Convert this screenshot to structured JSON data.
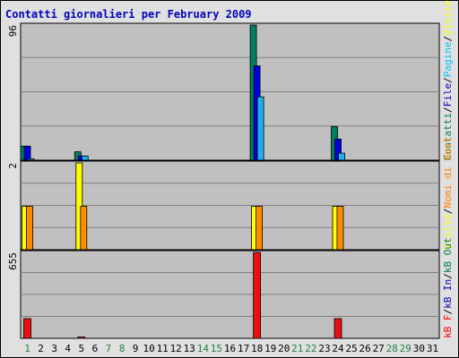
{
  "chart_data": {
    "type": "bar",
    "title": "Contatti giornalieri per February 2009",
    "x": [
      "1",
      "2",
      "3",
      "4",
      "5",
      "6",
      "7",
      "8",
      "9",
      "10",
      "11",
      "12",
      "13",
      "14",
      "15",
      "16",
      "17",
      "18",
      "19",
      "20",
      "21",
      "22",
      "23",
      "24",
      "25",
      "26",
      "27",
      "28",
      "29",
      "30",
      "31"
    ],
    "weekend_days": [
      "1",
      "7",
      "8",
      "14",
      "15",
      "21",
      "22",
      "28",
      "29"
    ],
    "panels": [
      {
        "id": "top",
        "ymax_label": "96",
        "ymax": 96,
        "legend": [
          {
            "label": "Contatti",
            "color": "#008040"
          },
          {
            "label": "/",
            "color": "#000000"
          },
          {
            "label": "File",
            "color": "#0000c0"
          },
          {
            "label": "/",
            "color": "#000000"
          },
          {
            "label": "Pagine",
            "color": "#00c0ff"
          },
          {
            "label": "/",
            "color": "#000000"
          },
          {
            "label": "Visite",
            "color": "#ffff00"
          }
        ],
        "series": [
          {
            "name": "Contatti",
            "color": "#008060",
            "values": [
              10,
              0,
              0,
              0,
              6,
              0,
              0,
              0,
              0,
              0,
              0,
              0,
              0,
              0,
              0,
              0,
              0,
              96,
              0,
              0,
              0,
              0,
              0,
              24,
              0,
              0,
              0,
              0,
              0,
              0,
              0
            ]
          },
          {
            "name": "File",
            "color": "#0000e0",
            "values": [
              10,
              0,
              0,
              0,
              3,
              0,
              0,
              0,
              0,
              0,
              0,
              0,
              0,
              0,
              0,
              0,
              0,
              67,
              0,
              0,
              0,
              0,
              0,
              15,
              0,
              0,
              0,
              0,
              0,
              0,
              0
            ]
          },
          {
            "name": "Pagine",
            "color": "#20b0f0",
            "values": [
              1,
              0,
              0,
              0,
              3,
              0,
              0,
              0,
              0,
              0,
              0,
              0,
              0,
              0,
              0,
              0,
              0,
              45,
              0,
              0,
              0,
              0,
              0,
              5,
              0,
              0,
              0,
              0,
              0,
              0,
              0
            ]
          }
        ]
      },
      {
        "id": "middle",
        "ymax_label": "2",
        "ymax": 2,
        "legend": [
          {
            "label": "Visite",
            "color": "#ffff00"
          },
          {
            "label": "/",
            "color": "#000000"
          },
          {
            "label": "Nomi di Host",
            "color": "#ff8000"
          }
        ],
        "series": [
          {
            "name": "Visite",
            "color": "#ffff00",
            "values": [
              1,
              0,
              0,
              0,
              2,
              0,
              0,
              0,
              0,
              0,
              0,
              0,
              0,
              0,
              0,
              0,
              0,
              1,
              0,
              0,
              0,
              0,
              0,
              1,
              0,
              0,
              0,
              0,
              0,
              0,
              0
            ]
          },
          {
            "name": "Nomi di Host",
            "color": "#ff8c00",
            "values": [
              1,
              0,
              0,
              0,
              1,
              0,
              0,
              0,
              0,
              0,
              0,
              0,
              0,
              0,
              0,
              0,
              0,
              1,
              0,
              0,
              0,
              0,
              0,
              1,
              0,
              0,
              0,
              0,
              0,
              0,
              0
            ]
          }
        ]
      },
      {
        "id": "bottom",
        "ymax_label": "655",
        "ymax": 655,
        "legend": [
          {
            "label": "kB F",
            "color": "#ff0000"
          },
          {
            "label": "/",
            "color": "#000000"
          },
          {
            "label": "kB In",
            "color": "#0000c0"
          },
          {
            "label": "/",
            "color": "#000000"
          },
          {
            "label": "kB Out",
            "color": "#008040"
          }
        ],
        "series": [
          {
            "name": "kB F",
            "color": "#e81010",
            "values": [
              150,
              0,
              0,
              0,
              10,
              0,
              0,
              0,
              0,
              0,
              0,
              0,
              0,
              0,
              0,
              0,
              0,
              655,
              0,
              0,
              0,
              0,
              0,
              150,
              0,
              0,
              0,
              0,
              0,
              0,
              0
            ]
          }
        ]
      }
    ],
    "grid": true
  }
}
